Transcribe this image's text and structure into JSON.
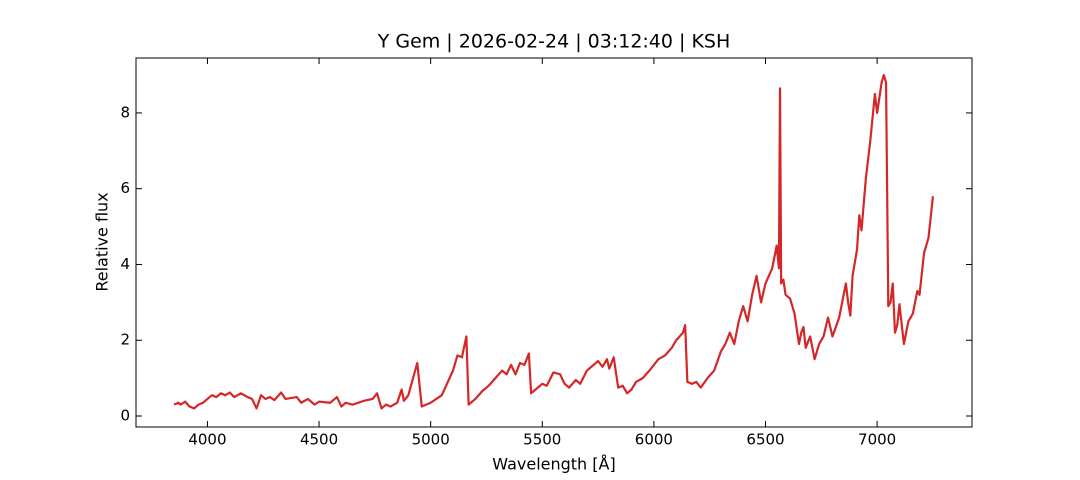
{
  "chart_data": {
    "type": "line",
    "title": "Y Gem | 2026-02-24 | 03:12:40 | KSH",
    "xlabel": "Wavelength [Å]",
    "ylabel": "Relative flux",
    "xlim": [
      3680,
      7425
    ],
    "ylim": [
      -0.29,
      9.45
    ],
    "xticks": [
      4000,
      4500,
      5000,
      5500,
      6000,
      6500,
      7000
    ],
    "yticks": [
      0,
      2,
      4,
      6,
      8
    ],
    "series": [
      {
        "color": "#d62728",
        "x": [
          3850,
          3870,
          3880,
          3900,
          3920,
          3940,
          3960,
          3980,
          4000,
          4020,
          4040,
          4060,
          4080,
          4100,
          4120,
          4150,
          4180,
          4200,
          4220,
          4240,
          4260,
          4280,
          4300,
          4330,
          4350,
          4400,
          4420,
          4450,
          4480,
          4500,
          4550,
          4580,
          4600,
          4620,
          4650,
          4700,
          4740,
          4760,
          4780,
          4800,
          4820,
          4850,
          4870,
          4880,
          4900,
          4940,
          4960,
          5000,
          5050,
          5100,
          5120,
          5140,
          5160,
          5170,
          5200,
          5230,
          5260,
          5290,
          5320,
          5340,
          5360,
          5380,
          5400,
          5420,
          5440,
          5450,
          5480,
          5500,
          5520,
          5550,
          5580,
          5600,
          5620,
          5650,
          5670,
          5700,
          5720,
          5750,
          5770,
          5790,
          5800,
          5820,
          5840,
          5860,
          5880,
          5900,
          5920,
          5950,
          5980,
          6000,
          6020,
          6050,
          6080,
          6100,
          6130,
          6140,
          6150,
          6170,
          6190,
          6210,
          6240,
          6270,
          6300,
          6320,
          6340,
          6360,
          6380,
          6400,
          6420,
          6440,
          6460,
          6480,
          6500,
          6530,
          6550,
          6560,
          6565,
          6570,
          6580,
          6590,
          6610,
          6630,
          6650,
          6660,
          6670,
          6680,
          6700,
          6720,
          6740,
          6760,
          6780,
          6800,
          6830,
          6850,
          6860,
          6870,
          6880,
          6890,
          6910,
          6920,
          6930,
          6950,
          6970,
          6990,
          7000,
          7020,
          7030,
          7040,
          7050,
          7060,
          7070,
          7080,
          7090,
          7100,
          7120,
          7140,
          7160,
          7180,
          7190,
          7210,
          7230,
          7250
        ],
        "values": [
          0.3,
          0.35,
          0.3,
          0.38,
          0.25,
          0.2,
          0.3,
          0.35,
          0.45,
          0.55,
          0.5,
          0.6,
          0.55,
          0.62,
          0.5,
          0.6,
          0.5,
          0.45,
          0.2,
          0.55,
          0.45,
          0.5,
          0.42,
          0.62,
          0.45,
          0.5,
          0.35,
          0.45,
          0.3,
          0.38,
          0.35,
          0.5,
          0.25,
          0.35,
          0.3,
          0.4,
          0.45,
          0.6,
          0.2,
          0.3,
          0.25,
          0.35,
          0.7,
          0.4,
          0.55,
          1.4,
          0.25,
          0.35,
          0.55,
          1.2,
          1.6,
          1.55,
          2.1,
          0.3,
          0.45,
          0.65,
          0.8,
          1.0,
          1.2,
          1.1,
          1.35,
          1.1,
          1.4,
          1.35,
          1.65,
          0.6,
          0.75,
          0.85,
          0.8,
          1.15,
          1.1,
          0.85,
          0.75,
          0.95,
          0.85,
          1.2,
          1.3,
          1.45,
          1.3,
          1.5,
          1.25,
          1.55,
          0.75,
          0.8,
          0.6,
          0.7,
          0.9,
          1.0,
          1.2,
          1.35,
          1.5,
          1.6,
          1.8,
          2.0,
          2.2,
          2.4,
          0.9,
          0.85,
          0.9,
          0.75,
          1.0,
          1.2,
          1.7,
          1.9,
          2.2,
          1.9,
          2.5,
          2.9,
          2.5,
          3.2,
          3.7,
          3.0,
          3.5,
          3.9,
          4.5,
          3.9,
          8.65,
          3.5,
          3.6,
          3.2,
          3.1,
          2.7,
          1.9,
          2.2,
          2.35,
          1.8,
          2.1,
          1.5,
          1.9,
          2.1,
          2.6,
          2.1,
          2.6,
          3.2,
          3.5,
          3.0,
          2.65,
          3.7,
          4.4,
          5.3,
          4.9,
          6.3,
          7.3,
          8.5,
          8.0,
          8.8,
          9.0,
          8.8,
          2.9,
          3.0,
          3.5,
          2.2,
          2.4,
          2.95,
          1.9,
          2.5,
          2.7,
          3.3,
          3.2,
          4.3,
          4.7,
          5.8
        ]
      }
    ]
  }
}
